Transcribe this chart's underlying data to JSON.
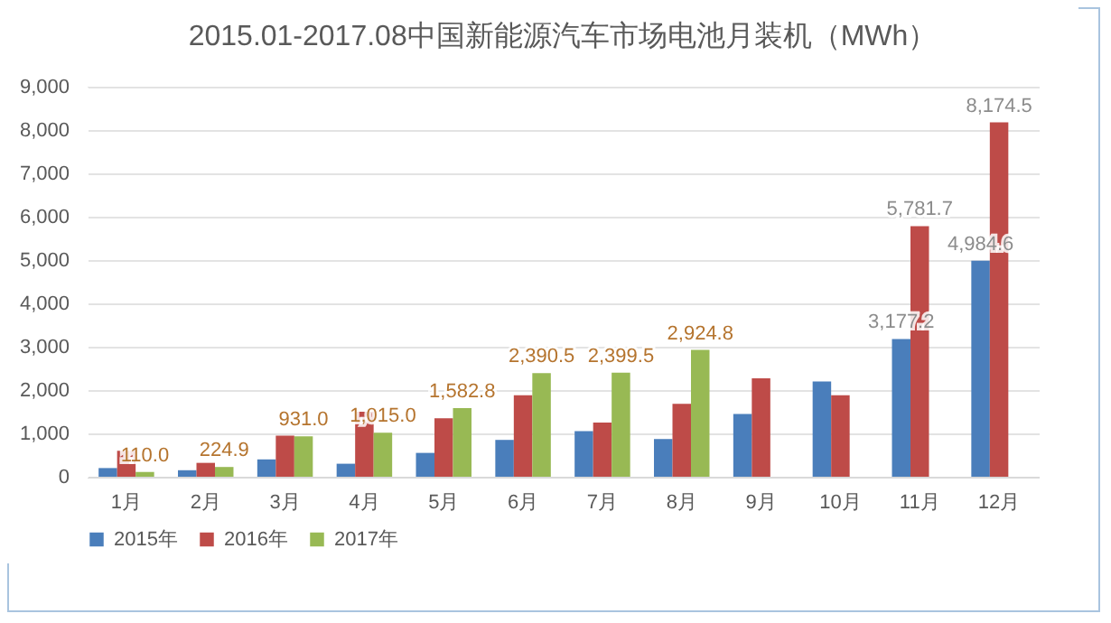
{
  "chart_data": {
    "type": "bar",
    "title": "2015.01-2017.08中国新能源汽车市场电池月装机（MWh）",
    "categories": [
      "1月",
      "2月",
      "3月",
      "4月",
      "5月",
      "6月",
      "7月",
      "8月",
      "9月",
      "10月",
      "11月",
      "12月"
    ],
    "series": [
      {
        "name": "2015年",
        "color": "#4a7ebb",
        "values": [
          200,
          150,
          400,
          300,
          550,
          850,
          1050,
          870,
          1450,
          2200,
          3177.2,
          4984.6
        ],
        "value_labels": [
          null,
          null,
          null,
          null,
          null,
          null,
          null,
          null,
          null,
          null,
          "3,177.2",
          "4,984.6"
        ]
      },
      {
        "name": "2016年",
        "color": "#be4b48",
        "values": [
          600,
          320,
          950,
          1500,
          1350,
          1880,
          1250,
          1680,
          2270,
          1880,
          5781.7,
          8174.5
        ],
        "value_labels": [
          null,
          null,
          null,
          null,
          null,
          null,
          null,
          null,
          null,
          null,
          "5,781.7",
          "8,174.5"
        ]
      },
      {
        "name": "2017年",
        "color": "#98b954",
        "values": [
          110,
          224.9,
          931,
          1015,
          1582.8,
          2390.5,
          2399.5,
          2924.8,
          null,
          null,
          null,
          null
        ],
        "value_labels": [
          "110.0",
          "224.9",
          "931.0",
          "1,015.0",
          "1,582.8",
          "2,390.5",
          "2,399.5",
          "2,924.8",
          null,
          null,
          null,
          null
        ]
      }
    ],
    "ylim": [
      0,
      9000
    ],
    "yticks": [
      {
        "value": 0,
        "label": "0"
      },
      {
        "value": 1000,
        "label": "1,000"
      },
      {
        "value": 2000,
        "label": "2,000"
      },
      {
        "value": 3000,
        "label": "3,000"
      },
      {
        "value": 4000,
        "label": "4,000"
      },
      {
        "value": 5000,
        "label": "5,000"
      },
      {
        "value": 6000,
        "label": "6,000"
      },
      {
        "value": 7000,
        "label": "7,000"
      },
      {
        "value": 8000,
        "label": "8,000"
      },
      {
        "value": 9000,
        "label": "9,000"
      }
    ],
    "grid": "y",
    "legend": "bottom"
  }
}
